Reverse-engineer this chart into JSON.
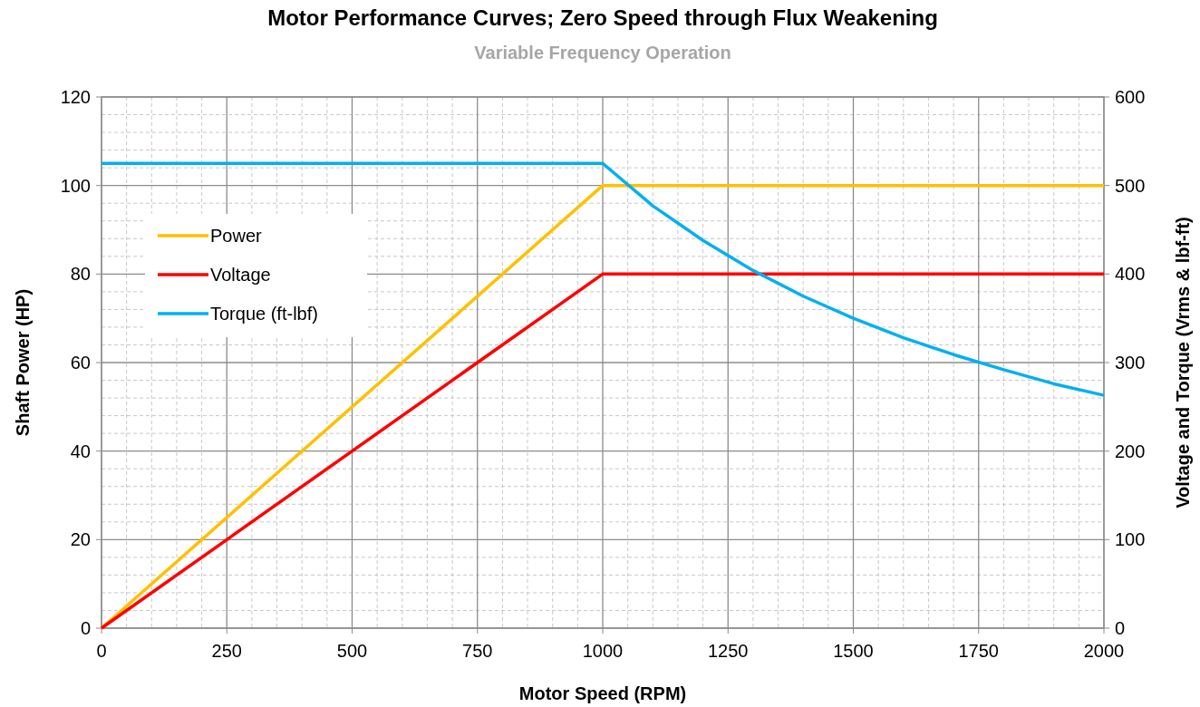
{
  "chart_data": {
    "type": "line",
    "title": "Motor Performance Curves; Zero Speed through Flux Weakening",
    "subtitle": "Variable Frequency Operation",
    "xlabel": "Motor Speed (RPM)",
    "ylabel": "Shaft Power (HP)",
    "y2label": "Voltage and Torque (Vrms & lbf-ft)",
    "xlim": [
      0,
      2000
    ],
    "xticks": [
      0,
      250,
      500,
      750,
      1000,
      1250,
      1500,
      1750,
      2000
    ],
    "ylim": [
      0,
      120
    ],
    "yticks": [
      0,
      20,
      40,
      60,
      80,
      100,
      120
    ],
    "y2lim": [
      0,
      600
    ],
    "y2ticks": [
      0,
      100,
      200,
      300,
      400,
      500,
      600
    ],
    "grid": true,
    "legend": "top left",
    "marker": "none",
    "line_style": "solid",
    "series": [
      {
        "name": "Power",
        "color": "#ffc000",
        "x": [
          0,
          1000,
          2000
        ],
        "values": [
          0,
          100,
          100
        ]
      },
      {
        "name": "Voltage",
        "color": "#ff0000",
        "axis": "y2",
        "x": [
          0,
          1000,
          2000
        ],
        "values": [
          0,
          400,
          400
        ]
      },
      {
        "name": "Torque (ft-lbf)",
        "color": "#00b0f0",
        "axis": "y2",
        "x": [
          0,
          1000,
          1100,
          1200,
          1300,
          1400,
          1500,
          1600,
          1700,
          1800,
          1900,
          2000
        ],
        "values": [
          525,
          525,
          477,
          438,
          404,
          375,
          350,
          328,
          309,
          292,
          276,
          263
        ]
      }
    ]
  }
}
